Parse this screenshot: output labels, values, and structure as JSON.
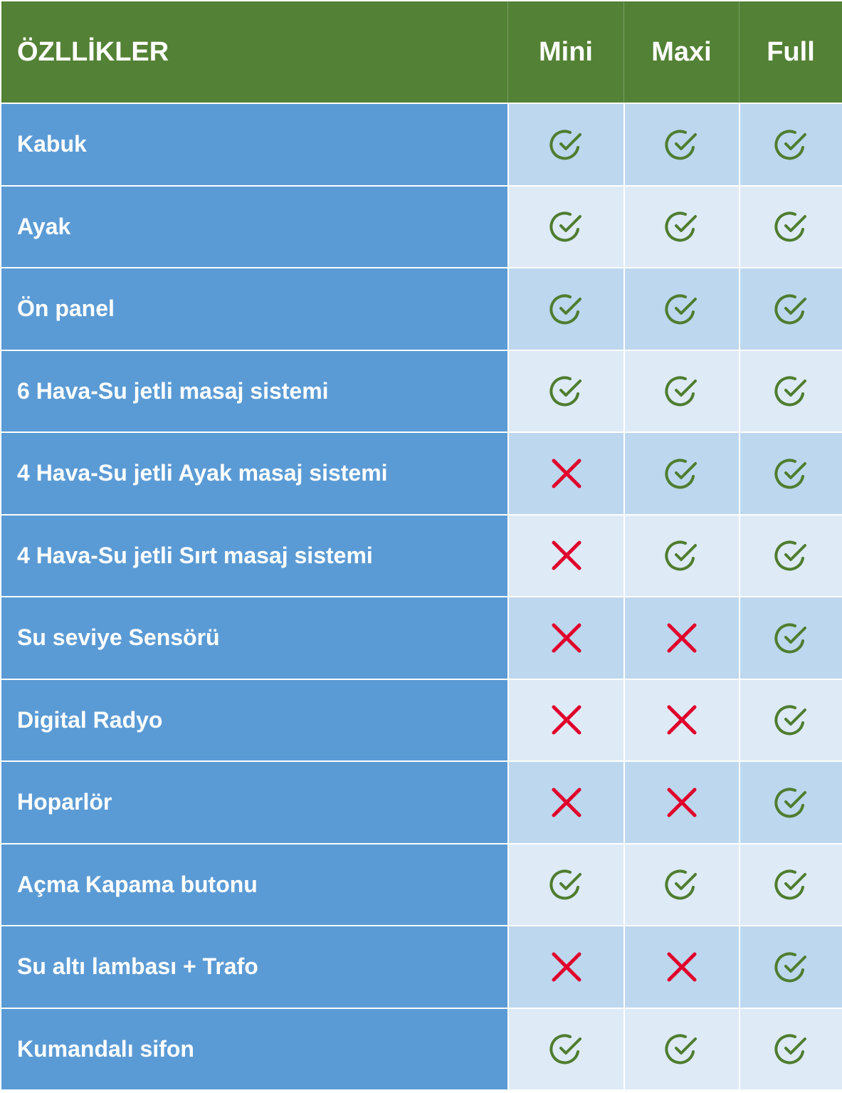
{
  "header": {
    "features": "ÖZLLİKLER",
    "columns": [
      "Mini",
      "Maxi",
      "Full"
    ]
  },
  "colors": {
    "header_bg": "#538135",
    "feature_bg": "#5B9BD5",
    "row_odd": "#BDD7EE",
    "row_even": "#DEEAF6",
    "check": "#4E7D2F",
    "cross": "#E0002B"
  },
  "rows": [
    {
      "feature": "Kabuk",
      "values": [
        true,
        true,
        true
      ]
    },
    {
      "feature": "Ayak",
      "values": [
        true,
        true,
        true
      ]
    },
    {
      "feature": "Ön panel",
      "values": [
        true,
        true,
        true
      ]
    },
    {
      "feature": "6 Hava-Su jetli masaj sistemi",
      "values": [
        true,
        true,
        true
      ]
    },
    {
      "feature": "4 Hava-Su jetli Ayak masaj sistemi",
      "values": [
        false,
        true,
        true
      ]
    },
    {
      "feature": "4 Hava-Su jetli Sırt masaj sistemi",
      "values": [
        false,
        true,
        true
      ]
    },
    {
      "feature": "Su seviye Sensörü",
      "values": [
        false,
        false,
        true
      ]
    },
    {
      "feature": "Digital Radyo",
      "values": [
        false,
        false,
        true
      ]
    },
    {
      "feature": "Hoparlör",
      "values": [
        false,
        false,
        true
      ]
    },
    {
      "feature": "Açma Kapama butonu",
      "values": [
        true,
        true,
        true
      ]
    },
    {
      "feature": "Su altı lambası + Trafo",
      "values": [
        false,
        false,
        true
      ]
    },
    {
      "feature": "Kumandalı sifon",
      "values": [
        true,
        true,
        true
      ]
    }
  ]
}
